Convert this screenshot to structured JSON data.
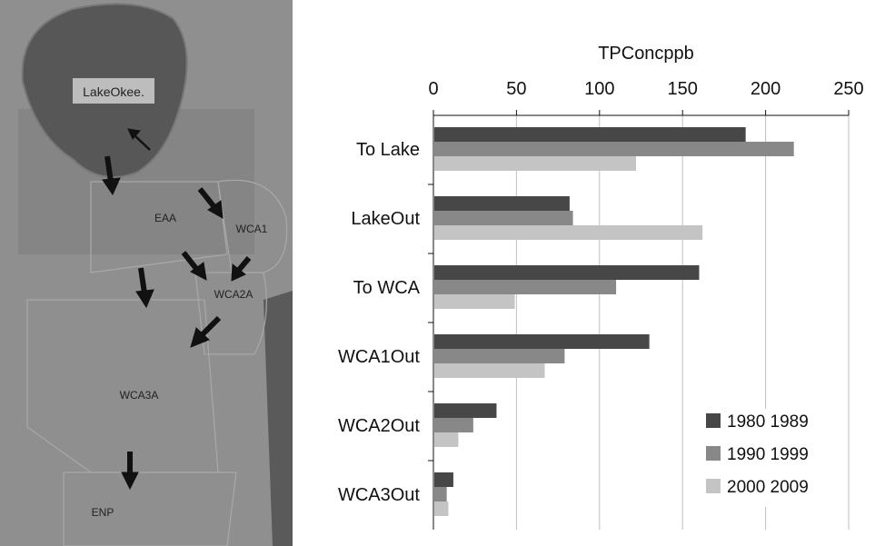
{
  "map": {
    "labels": {
      "lake": "LakeOkee.",
      "eaa": "EAA",
      "wca1": "WCA1",
      "wca2a": "WCA2A",
      "wca3a": "WCA3A",
      "enp": "ENP"
    },
    "colors": {
      "land": "#8f8f8f",
      "lake": "#575757",
      "label_box": "#bdbdbd"
    }
  },
  "chart_data": {
    "type": "bar",
    "orientation": "horizontal",
    "title": "TPConcppb",
    "xlabel": "TPConcppb",
    "ylabel": "",
    "xlim": [
      0,
      250
    ],
    "xticks": [
      0,
      50,
      100,
      150,
      200,
      250
    ],
    "categories": [
      "To Lake",
      "LakeOut",
      "To WCA",
      "WCA1Out",
      "WCA2Out",
      "WCA3Out"
    ],
    "series": [
      {
        "name": "1980 1989",
        "color": "#474747",
        "values": [
          188,
          82,
          160,
          130,
          38,
          12
        ]
      },
      {
        "name": "1990 1999",
        "color": "#888888",
        "values": [
          217,
          84,
          110,
          79,
          24,
          8
        ]
      },
      {
        "name": "2000 2009",
        "color": "#c4c4c4",
        "values": [
          122,
          162,
          49,
          67,
          15,
          9
        ]
      }
    ],
    "grid": true,
    "legend": "bottom-right"
  }
}
